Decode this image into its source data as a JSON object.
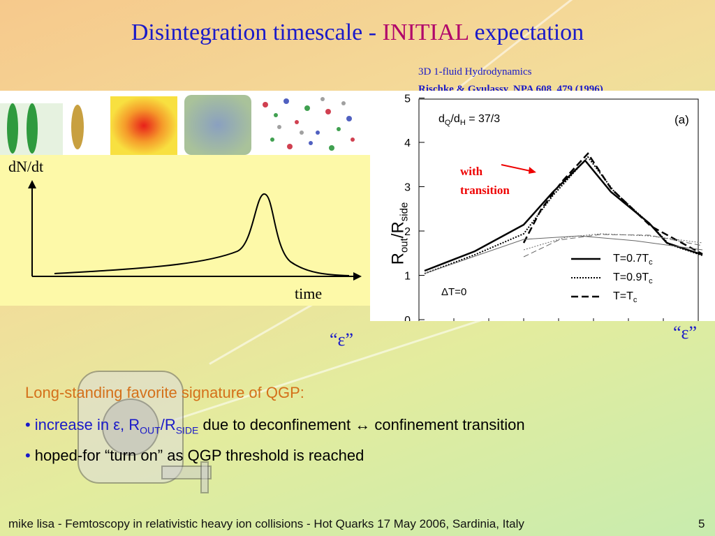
{
  "slide": {
    "title_part1": "Disintegration timescale - ",
    "title_highlight": "INITIAL",
    "title_part2": " expectation",
    "reference_line1": "3D 1-fluid Hydrodynamics",
    "reference_line2": "Rischke & Gyulassy, NPA 608, 479 (1996)",
    "epsilon_left": "“ε”",
    "epsilon_right": "“ε”",
    "heading": "Long-standing favorite signature of QGP:",
    "bullet1": {
      "marker": "•",
      "part1": "increase in ε, R",
      "sub1": "OUT",
      "part2": "/R",
      "sub2": "SIDE",
      "part3": " due to deconfinement ↔ confinement transition"
    },
    "bullet2": {
      "marker": "•",
      "text": "hoped-for “turn on” as QGP threshold is reached"
    },
    "footer": "mike lisa - Femtoscopy in relativistic heavy ion collisions - Hot Quarks 17 May 2006, Sardinia, Italy",
    "page_number": "5"
  },
  "left_plot": {
    "ylabel": "dN/dt",
    "xlabel": "time"
  },
  "right_plot": {
    "panel_label": "(a)",
    "ratio_label": "d",
    "ratio_sub1": "Q",
    "ratio_mid": "/d",
    "ratio_sub2": "H",
    "ratio_value": " = 37/3",
    "annotation_line1": "with",
    "annotation_line2": "transition",
    "delta_label": "ΔT=0",
    "ylabel_R": "R",
    "ylabel_sub1": "out",
    "ylabel_mid": "/R",
    "ylabel_sub2": "side",
    "yticks": [
      "0",
      "1",
      "2",
      "3",
      "4",
      "5"
    ],
    "legend": [
      {
        "label": "T=0.7T",
        "sub": "c",
        "style": "solid"
      },
      {
        "label": "T=0.9T",
        "sub": "c",
        "style": "dotted"
      },
      {
        "label": "T=T",
        "sub": "c",
        "style": "dashed"
      }
    ]
  }
}
